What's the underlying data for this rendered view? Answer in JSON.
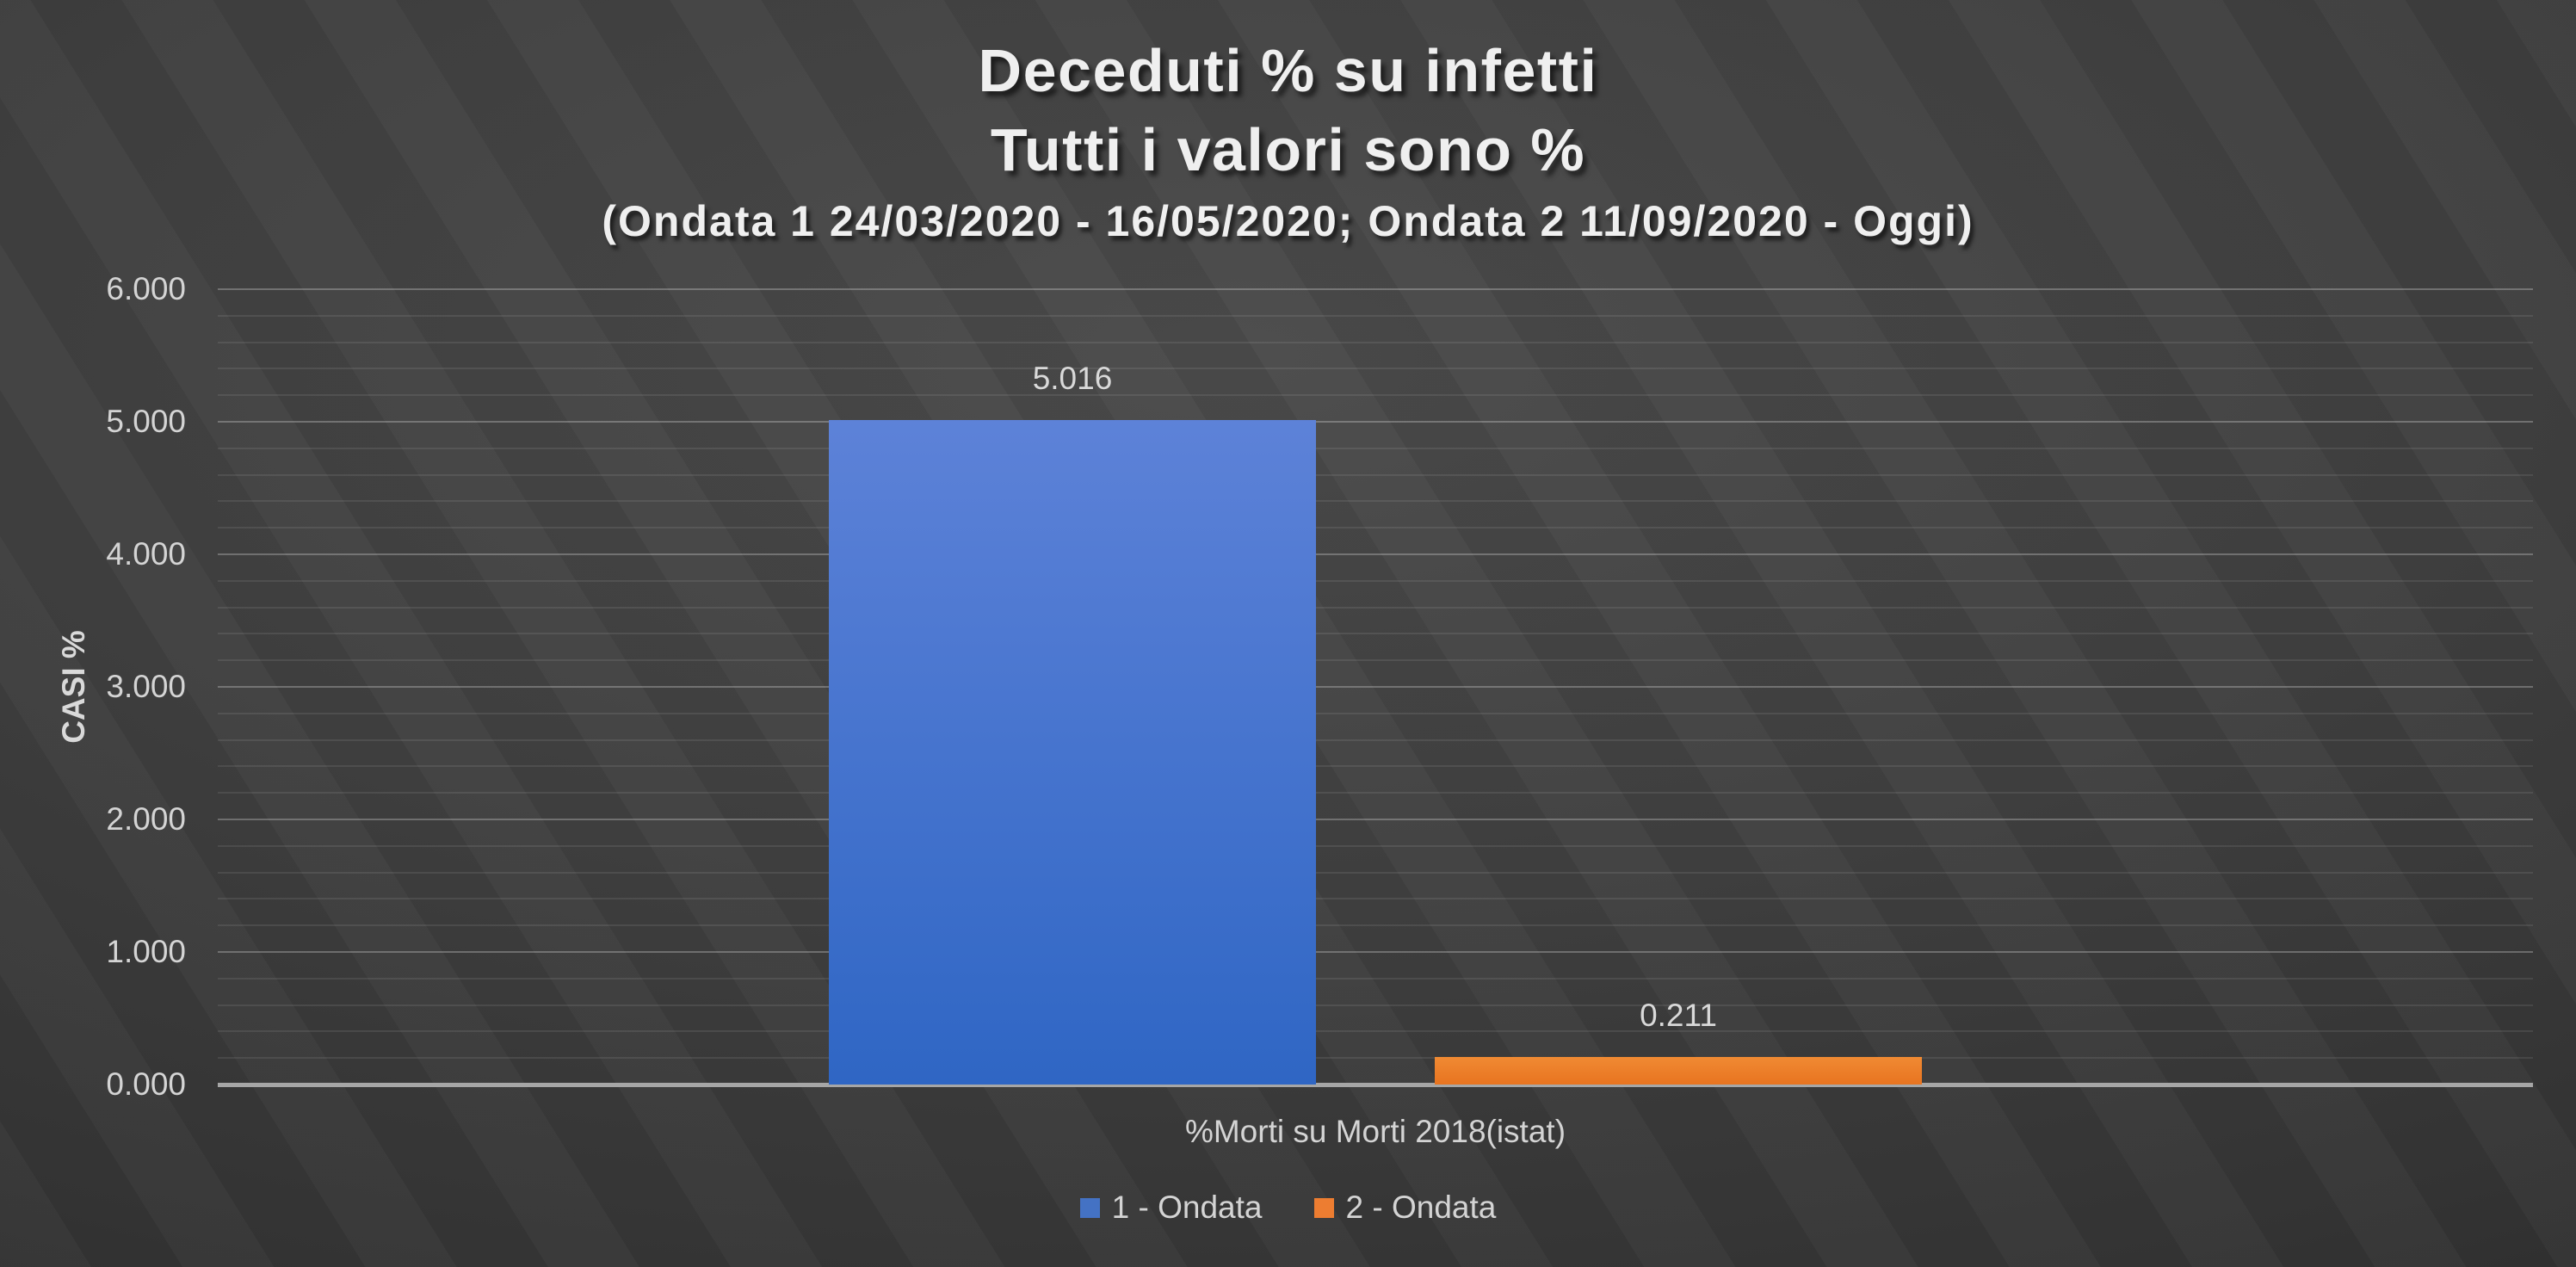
{
  "chart_data": {
    "type": "bar",
    "title": "Deceduti % su infetti",
    "subtitle": "Tutti i valori sono %",
    "subtitle2": "(Ondata 1 24/03/2020 - 16/05/2020; Ondata 2 11/09/2020 - Oggi)",
    "categories": [
      "%Morti su Morti 2018(istat)"
    ],
    "series": [
      {
        "name": "1 - Ondata",
        "values": [
          5.016
        ],
        "label": "5.016",
        "color": "#4472C4",
        "gradient": [
          "#5d82d8",
          "#2f66c4"
        ]
      },
      {
        "name": "2 - Ondata",
        "values": [
          0.211
        ],
        "label": "0.211",
        "color": "#ED7D31",
        "gradient": [
          "#f08a33",
          "#e87420"
        ]
      }
    ],
    "xlabel": "",
    "ylabel": "CASI %",
    "ylim": [
      0,
      6
    ],
    "ytick_step": 1,
    "y_minor_step": 0.2,
    "yticks": [
      "0.000",
      "1.000",
      "2.000",
      "3.000",
      "4.000",
      "5.000",
      "6.000"
    ],
    "grid": "horizontal major + minor, no vertical",
    "legend_position": "bottom"
  },
  "colors": {
    "background_center": "#4a4a4a",
    "background_edge": "#242424",
    "axis_line": "#a6a6a6",
    "gridline_major": "rgba(255,255,255,0.26)",
    "gridline_minor": "rgba(255,255,255,0.085)",
    "text": "#d4d4d4",
    "title_text": "#efefef",
    "accent_blue": "#4472C4",
    "accent_orange": "#ED7D31"
  }
}
